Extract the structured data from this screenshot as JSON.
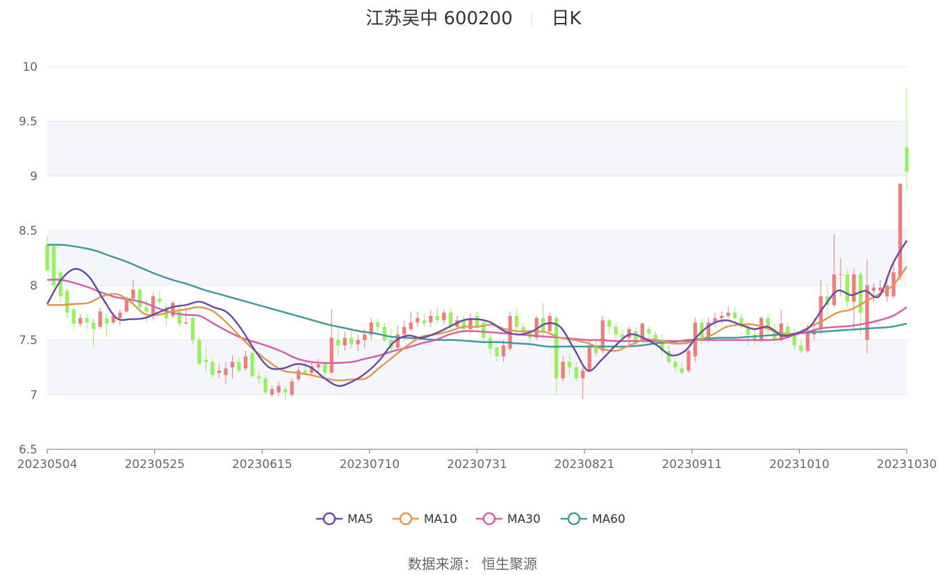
{
  "chart_data": {
    "type": "candlestick",
    "title": "江苏吴中 600200",
    "subtitle": "日K",
    "source": "数据来源： 恒生聚源",
    "y_ticks": [
      "10",
      "9.5",
      "9",
      "8.5",
      "8",
      "7.5",
      "7",
      "6.5"
    ],
    "ylim": [
      6.5,
      10
    ],
    "x_tick_labels": [
      "20230504",
      "20230525",
      "20230615",
      "20230710",
      "20230731",
      "20230821",
      "20230911",
      "20231010",
      "20231030"
    ],
    "up_color": "#f47a7a",
    "down_color": "#91f55a",
    "legend": [
      {
        "name": "MA5",
        "color": "#6b4aa8"
      },
      {
        "name": "MA10",
        "color": "#e09a4a"
      },
      {
        "name": "MA30",
        "color": "#d65fa8"
      },
      {
        "name": "MA60",
        "color": "#3f9b9a"
      }
    ],
    "candles": [
      [
        8.37,
        8.14,
        8.45,
        8.12
      ],
      [
        8.36,
        8.0,
        8.38,
        7.98
      ],
      [
        8.12,
        7.9,
        8.14,
        7.85
      ],
      [
        7.95,
        7.75,
        7.97,
        7.7
      ],
      [
        7.78,
        7.65,
        7.8,
        7.6
      ],
      [
        7.65,
        7.7,
        7.73,
        7.62
      ],
      [
        7.7,
        7.66,
        7.74,
        7.6
      ],
      [
        7.66,
        7.6,
        7.7,
        7.44
      ],
      [
        7.62,
        7.76,
        7.8,
        7.6
      ],
      [
        7.7,
        7.65,
        7.74,
        7.53
      ],
      [
        7.66,
        7.72,
        7.75,
        7.64
      ],
      [
        7.7,
        7.75,
        7.78,
        7.63
      ],
      [
        7.76,
        7.87,
        7.9,
        7.75
      ],
      [
        7.88,
        7.96,
        8.05,
        7.82
      ],
      [
        7.96,
        7.8,
        7.98,
        7.77
      ],
      [
        7.8,
        7.76,
        7.87,
        7.66
      ],
      [
        7.73,
        7.9,
        7.93,
        7.68
      ],
      [
        7.88,
        7.85,
        7.95,
        7.82
      ],
      [
        7.8,
        7.7,
        7.84,
        7.62
      ],
      [
        7.72,
        7.84,
        7.86,
        7.7
      ],
      [
        7.76,
        7.65,
        7.84,
        7.62
      ],
      [
        7.65,
        7.66,
        7.78,
        7.64
      ],
      [
        7.7,
        7.5,
        7.72,
        7.46
      ],
      [
        7.5,
        7.28,
        7.53,
        7.27
      ],
      [
        7.32,
        7.3,
        7.44,
        7.2
      ],
      [
        7.3,
        7.18,
        7.33,
        7.15
      ],
      [
        7.2,
        7.22,
        7.28,
        7.15
      ],
      [
        7.18,
        7.24,
        7.3,
        7.1
      ],
      [
        7.25,
        7.3,
        7.36,
        7.15
      ],
      [
        7.3,
        7.22,
        7.34,
        7.2
      ],
      [
        7.24,
        7.35,
        7.4,
        7.22
      ],
      [
        7.38,
        7.17,
        7.4,
        7.15
      ],
      [
        7.17,
        7.15,
        7.22,
        7.1
      ],
      [
        7.15,
        7.02,
        7.18,
        7.0
      ],
      [
        7.0,
        7.05,
        7.08,
        6.98
      ],
      [
        7.02,
        7.08,
        7.12,
        6.98
      ],
      [
        7.05,
        7.02,
        7.08,
        6.95
      ],
      [
        7.0,
        7.12,
        7.15,
        6.98
      ],
      [
        7.14,
        7.22,
        7.26,
        7.12
      ],
      [
        7.22,
        7.2,
        7.3,
        7.18
      ],
      [
        7.2,
        7.26,
        7.3,
        7.18
      ],
      [
        7.25,
        7.28,
        7.33,
        7.2
      ],
      [
        7.28,
        7.2,
        7.3,
        7.15
      ],
      [
        7.2,
        7.52,
        7.78,
        7.2
      ],
      [
        7.5,
        7.45,
        7.6,
        7.35
      ],
      [
        7.45,
        7.52,
        7.58,
        7.4
      ],
      [
        7.52,
        7.46,
        7.6,
        7.42
      ],
      [
        7.46,
        7.5,
        7.55,
        7.4
      ],
      [
        7.5,
        7.55,
        7.6,
        7.42
      ],
      [
        7.55,
        7.66,
        7.7,
        7.5
      ],
      [
        7.66,
        7.62,
        7.7,
        7.58
      ],
      [
        7.62,
        7.5,
        7.66,
        7.48
      ],
      [
        7.5,
        7.42,
        7.6,
        7.4
      ],
      [
        7.43,
        7.55,
        7.63,
        7.4
      ],
      [
        7.55,
        7.62,
        7.68,
        7.5
      ],
      [
        7.6,
        7.66,
        7.76,
        7.58
      ],
      [
        7.66,
        7.7,
        7.76,
        7.62
      ],
      [
        7.68,
        7.65,
        7.74,
        7.62
      ],
      [
        7.66,
        7.72,
        7.78,
        7.62
      ],
      [
        7.72,
        7.68,
        7.8,
        7.65
      ],
      [
        7.68,
        7.75,
        7.78,
        7.64
      ],
      [
        7.75,
        7.62,
        7.78,
        7.6
      ],
      [
        7.62,
        7.68,
        7.72,
        7.6
      ],
      [
        7.68,
        7.6,
        7.72,
        7.56
      ],
      [
        7.6,
        7.7,
        7.74,
        7.56
      ],
      [
        7.72,
        7.62,
        7.76,
        7.6
      ],
      [
        7.66,
        7.52,
        7.68,
        7.48
      ],
      [
        7.52,
        7.42,
        7.55,
        7.38
      ],
      [
        7.43,
        7.35,
        7.45,
        7.3
      ],
      [
        7.35,
        7.45,
        7.5,
        7.3
      ],
      [
        7.42,
        7.72,
        7.76,
        7.4
      ],
      [
        7.72,
        7.62,
        7.78,
        7.55
      ],
      [
        7.62,
        7.58,
        7.66,
        7.55
      ],
      [
        7.58,
        7.52,
        7.6,
        7.45
      ],
      [
        7.52,
        7.7,
        7.72,
        7.5
      ],
      [
        7.7,
        7.58,
        7.84,
        7.52
      ],
      [
        7.58,
        7.72,
        7.75,
        7.55
      ],
      [
        7.7,
        7.15,
        7.72,
        7.0
      ],
      [
        7.15,
        7.3,
        7.35,
        7.12
      ],
      [
        7.3,
        7.25,
        7.38,
        7.18
      ],
      [
        7.25,
        7.15,
        7.3,
        7.12
      ],
      [
        7.15,
        7.22,
        7.25,
        6.96
      ],
      [
        7.22,
        7.45,
        7.5,
        7.2
      ],
      [
        7.45,
        7.38,
        7.5,
        7.35
      ],
      [
        7.4,
        7.68,
        7.72,
        7.38
      ],
      [
        7.68,
        7.62,
        7.7,
        7.55
      ],
      [
        7.62,
        7.55,
        7.66,
        7.5
      ],
      [
        7.55,
        7.52,
        7.6,
        7.48
      ],
      [
        7.52,
        7.6,
        7.62,
        7.45
      ],
      [
        7.58,
        7.5,
        7.62,
        7.46
      ],
      [
        7.5,
        7.65,
        7.66,
        7.5
      ],
      [
        7.6,
        7.56,
        7.62,
        7.5
      ],
      [
        7.55,
        7.5,
        7.58,
        7.45
      ],
      [
        7.5,
        7.4,
        7.55,
        7.36
      ],
      [
        7.4,
        7.3,
        7.45,
        7.28
      ],
      [
        7.3,
        7.25,
        7.33,
        7.2
      ],
      [
        7.24,
        7.2,
        7.3,
        7.18
      ],
      [
        7.22,
        7.4,
        7.42,
        7.2
      ],
      [
        7.35,
        7.66,
        7.7,
        7.3
      ],
      [
        7.66,
        7.5,
        7.7,
        7.46
      ],
      [
        7.5,
        7.66,
        7.7,
        7.48
      ],
      [
        7.66,
        7.7,
        7.75,
        7.62
      ],
      [
        7.7,
        7.72,
        7.76,
        7.65
      ],
      [
        7.72,
        7.75,
        7.8,
        7.7
      ],
      [
        7.75,
        7.7,
        7.8,
        7.66
      ],
      [
        7.7,
        7.62,
        7.74,
        7.6
      ],
      [
        7.62,
        7.55,
        7.66,
        7.45
      ],
      [
        7.55,
        7.5,
        7.6,
        7.45
      ],
      [
        7.5,
        7.7,
        7.72,
        7.48
      ],
      [
        7.7,
        7.6,
        7.74,
        7.55
      ],
      [
        7.6,
        7.5,
        7.65,
        7.46
      ],
      [
        7.5,
        7.65,
        7.78,
        7.48
      ],
      [
        7.62,
        7.55,
        7.66,
        7.52
      ],
      [
        7.55,
        7.45,
        7.6,
        7.4
      ],
      [
        7.45,
        7.4,
        7.5,
        7.38
      ],
      [
        7.4,
        7.58,
        7.64,
        7.38
      ],
      [
        7.55,
        7.6,
        7.7,
        7.5
      ],
      [
        7.6,
        7.9,
        8.05,
        7.55
      ],
      [
        7.9,
        7.82,
        8.0,
        7.72
      ],
      [
        7.82,
        8.1,
        8.47,
        7.8
      ],
      [
        8.1,
        8.1,
        8.25,
        7.9
      ],
      [
        8.1,
        7.85,
        8.15,
        7.8
      ],
      [
        7.85,
        8.1,
        8.15,
        7.6
      ],
      [
        8.1,
        7.75,
        8.12,
        7.55
      ],
      [
        7.5,
        8.0,
        8.23,
        7.38
      ],
      [
        7.95,
        7.98,
        8.02,
        7.85
      ],
      [
        7.95,
        7.98,
        8.05,
        7.9
      ],
      [
        7.9,
        8.0,
        8.05,
        7.85
      ],
      [
        7.9,
        8.12,
        8.2,
        7.88
      ],
      [
        8.08,
        8.93,
        8.93,
        8.05
      ],
      [
        9.26,
        9.04,
        9.81,
        8.87
      ]
    ],
    "ma5": [
      7.83,
      8.05,
      8.15,
      8.08,
      7.88,
      7.7,
      7.69,
      7.7,
      7.75,
      7.8,
      7.82,
      7.85,
      7.8,
      7.75,
      7.6,
      7.4,
      7.25,
      7.24,
      7.28,
      7.25,
      7.15,
      7.08,
      7.12,
      7.2,
      7.32,
      7.48,
      7.54,
      7.52,
      7.56,
      7.62,
      7.68,
      7.69,
      7.66,
      7.58,
      7.55,
      7.58,
      7.65,
      7.62,
      7.42,
      7.22,
      7.32,
      7.45,
      7.55,
      7.52,
      7.45,
      7.36,
      7.4,
      7.55,
      7.65,
      7.68,
      7.64,
      7.6,
      7.62,
      7.54,
      7.56,
      7.62,
      7.8,
      7.95,
      7.91,
      7.95,
      7.9,
      8.2,
      8.41
    ],
    "ma10": [
      7.82,
      7.82,
      7.83,
      7.84,
      7.9,
      7.92,
      7.85,
      7.74,
      7.73,
      7.76,
      7.78,
      7.8,
      7.76,
      7.65,
      7.52,
      7.4,
      7.3,
      7.22,
      7.2,
      7.18,
      7.15,
      7.13,
      7.14,
      7.15,
      7.25,
      7.35,
      7.45,
      7.53,
      7.55,
      7.58,
      7.62,
      7.62,
      7.64,
      7.6,
      7.58,
      7.58,
      7.57,
      7.52,
      7.5,
      7.47,
      7.42,
      7.4,
      7.45,
      7.5,
      7.5,
      7.47,
      7.47,
      7.5,
      7.55,
      7.62,
      7.64,
      7.64,
      7.6,
      7.56,
      7.56,
      7.62,
      7.68,
      7.75,
      7.78,
      7.85,
      7.92,
      8.0,
      8.17
    ],
    "ma30": [
      8.05,
      8.05,
      8.02,
      7.98,
      7.93,
      7.89,
      7.87,
      7.84,
      7.79,
      7.75,
      7.73,
      7.72,
      7.65,
      7.58,
      7.52,
      7.48,
      7.44,
      7.39,
      7.33,
      7.3,
      7.29,
      7.29,
      7.3,
      7.33,
      7.36,
      7.4,
      7.43,
      7.47,
      7.5,
      7.55,
      7.58,
      7.58,
      7.57,
      7.56,
      7.55,
      7.54,
      7.53,
      7.52,
      7.51,
      7.5,
      7.5,
      7.49,
      7.49,
      7.49,
      7.49,
      7.49,
      7.49,
      7.5,
      7.5,
      7.5,
      7.5,
      7.5,
      7.5,
      7.51,
      7.55,
      7.58,
      7.61,
      7.62,
      7.63,
      7.65,
      7.68,
      7.72,
      7.8
    ],
    "ma60": [
      8.37,
      8.37,
      8.35,
      8.32,
      8.27,
      8.22,
      8.16,
      8.1,
      8.05,
      8.01,
      7.96,
      7.92,
      7.88,
      7.84,
      7.8,
      7.76,
      7.72,
      7.68,
      7.64,
      7.61,
      7.58,
      7.56,
      7.53,
      7.52,
      7.51,
      7.5,
      7.5,
      7.49,
      7.48,
      7.48,
      7.47,
      7.46,
      7.44,
      7.44,
      7.44,
      7.44,
      7.44,
      7.44,
      7.45,
      7.47,
      7.48,
      7.5,
      7.51,
      7.52,
      7.52,
      7.53,
      7.54,
      7.55,
      7.56,
      7.57,
      7.58,
      7.59,
      7.6,
      7.61,
      7.62,
      7.65
    ]
  }
}
